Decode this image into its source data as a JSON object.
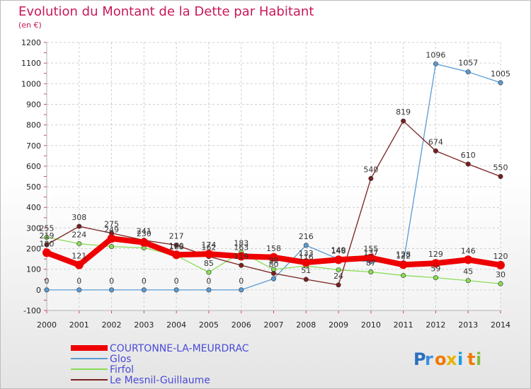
{
  "chart_data": {
    "type": "line",
    "title": "Evolution du Montant de la Dette par Habitant",
    "subtitle": "(en €)",
    "x": [
      2000,
      2001,
      2002,
      2003,
      2004,
      2005,
      2006,
      2007,
      2008,
      2009,
      2010,
      2011,
      2012,
      2013,
      2014
    ],
    "ylim": [
      -100,
      1200
    ],
    "yticks": [
      -100,
      0,
      100,
      200,
      300,
      400,
      500,
      600,
      700,
      800,
      900,
      1000,
      1100,
      1200
    ],
    "grid": true,
    "legend_position": "bottom-left",
    "series": [
      {
        "name": "COURTONNE-LA-MEURDRAC",
        "color": "#ee0000",
        "values": [
          180,
          121,
          249,
          230,
          170,
          174,
          163,
          158,
          133,
          146,
          155,
          122,
          129,
          146,
          120
        ]
      },
      {
        "name": "Glos",
        "color": "#5b9bd5",
        "values": [
          0,
          0,
          0,
          0,
          0,
          0,
          0,
          54,
          216,
          149,
          137,
          128,
          1096,
          1057,
          1005
        ]
      },
      {
        "name": "Firfol",
        "color": "#88dd55",
        "values": [
          255,
          224,
          210,
          204,
          166,
          85,
          183,
          99,
          116,
          97,
          87,
          70,
          59,
          45,
          30
        ]
      },
      {
        "name": "Le Mesnil-Guillaume",
        "color": "#7a1f1f",
        "values": [
          219,
          308,
          275,
          241,
          217,
          162,
          119,
          80,
          51,
          24,
          540,
          819,
          674,
          610,
          550
        ]
      }
    ],
    "label_visible": {
      "COURTONNE-LA-MEURDRAC": [
        1,
        1,
        1,
        1,
        1,
        1,
        1,
        1,
        1,
        1,
        1,
        1,
        1,
        1,
        1
      ],
      "Glos": [
        1,
        1,
        1,
        1,
        1,
        1,
        1,
        0,
        1,
        1,
        1,
        1,
        1,
        1,
        1
      ],
      "Firfol": [
        1,
        1,
        0,
        0,
        1,
        1,
        1,
        1,
        1,
        0,
        1,
        0,
        1,
        1,
        1
      ],
      "Le Mesnil-Guillaume": [
        1,
        1,
        1,
        1,
        1,
        1,
        1,
        1,
        1,
        1,
        1,
        1,
        1,
        1,
        1
      ]
    }
  },
  "brand": {
    "logo_text": "Proxiti"
  }
}
